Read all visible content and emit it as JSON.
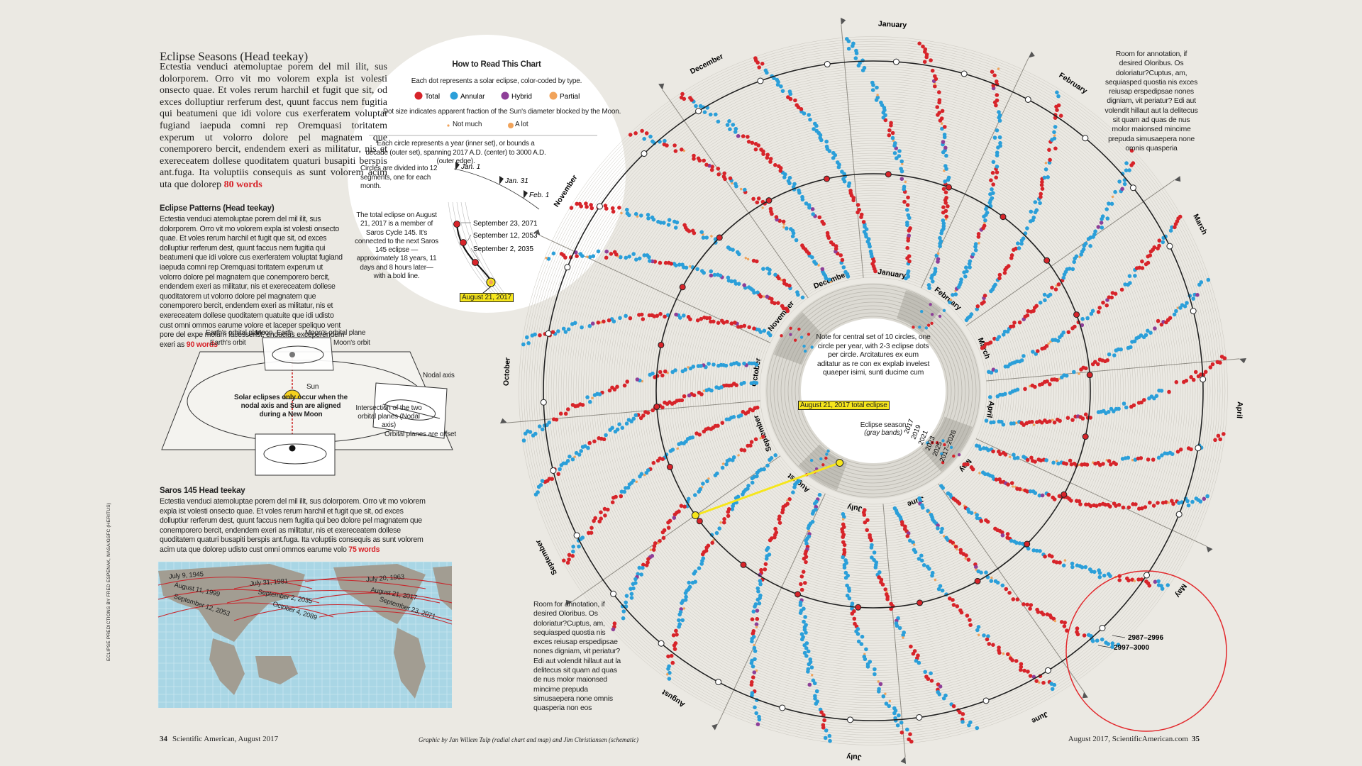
{
  "header": {
    "title": "Eclipse Seasons (Head teekay)",
    "body": "Ectestia venduci atemoluptae porem del mil ilit, sus dolorporem. Orro vit mo volorem expla ist volesti onsecto quae. Et voles rerum harchil et fugit que sit, od exces dolluptiur rerferum dest, quunt faccus nem fugitia qui beatumeni que idi volore cus exerferatem voluptat fugiand iaepuda comni rep Oremquasi toritatem experum ut volorro dolore pel magnatem que conemporero bercit, endendem exeri as militatur, nis et exereceatem dollese quoditatem quaturi busapiti berspis ant.fuga. Ita voluptiis consequis as sunt volorem acim uta que dolorep",
    "count": "80 words"
  },
  "patterns": {
    "title": "Eclipse Patterns (Head teekay)",
    "body": "Ectestia venduci atemoluptae porem del mil ilit, sus dolorporem. Orro vit mo volorem expla ist volesti onsecto quae. Et voles rerum harchil et fugit que sit, od exces dolluptiur rerferum dest, quunt faccus nem fugitia qui beatumeni que idi volore cus exerferatem voluptat fugiand iaepuda comni rep Oremquasi toritatem experum ut volorro dolore pel magnatem que conemporero bercit, endendem exeri as militatur, nis et exereceatem dollese quoditatorem ut volorro dolore pel magnatem que conemporero bercit, endendem exeri as militatur, nis et exereceatem dollese quoditatem quatuite que idi udisto cust omni ommos earume volore et laceper speliquo vent pore del expe molum facesserist, enducius exceperendem exeri as",
    "count": "90 words"
  },
  "schematic": {
    "labels": [
      "Earth's orbital plane",
      "Earth's orbit",
      "Moon",
      "Earth",
      "Moon's orbital plane",
      "Moon's orbit",
      "Nodal axis",
      "Sun",
      "Solar eclipses only occur when the nodal axis and Sun are aligned during a New Moon",
      "Intersection of the two orbital planes (Nodal axis)",
      "Orbital planes are offset"
    ]
  },
  "saros": {
    "title": "Saros 145 Head teekay",
    "body": "Ectestia venduci atemoluptae porem del mil ilit, sus dolorporem. Orro vit mo volorem expla ist volesti onsecto quae. Et voles rerum harchil et fugit que sit, od exces dolluptiur rerferum dest, quunt faccus nem fugitia qui beo dolore pel magnatem que conemporero bercit, endendem exeri as militatur, nis et exereceatem dollese quoditatem quaturi busapiti berspis ant.fuga. Ita voluptiis consequis as sunt volorem acim uta que dolorep udisto cust omni ommos earume volo",
    "count": "75 words"
  },
  "map": {
    "labels": [
      "July 9, 1945",
      "August 11, 1999",
      "September 12, 2053",
      "July 31, 1981",
      "September 2, 2035",
      "October 4, 2089",
      "July 20, 1963",
      "August 21, 2017",
      "September 23, 2071"
    ]
  },
  "how_to_read": {
    "title": "How to Read This Chart",
    "dot_text": "Each dot represents a solar eclipse, color-coded by type.",
    "legend": [
      {
        "name": "Total",
        "color": "#d7242a"
      },
      {
        "name": "Annular",
        "color": "#2b9fd9"
      },
      {
        "name": "Hybrid",
        "color": "#8e3f98"
      },
      {
        "name": "Partial",
        "color": "#f1a35a"
      }
    ],
    "size_text": "Dot size indicates apparent fraction of the Sun's diameter blocked by the Moon.",
    "size_small": "Not much",
    "size_large": "A lot",
    "circle_text": "Each circle represents a year (inner set), or bounds a decade (outer set), spanning 2017 A.D. (center) to 3000 A.D. (outer edge).",
    "segments_text": "Circles are divided into 12 segments, one for each month.",
    "ticks": [
      "Jan. 1",
      "Jan. 31",
      "Feb. 1"
    ],
    "saros_text": "The total eclipse on August 21, 2017 is a member of Saros Cycle 145. It's connected to the next Saros 145 eclipse — approximately 18 years, 11 days and 8 hours later—with a bold line.",
    "saros_dates": [
      "September 23, 2071",
      "September 12, 2053",
      "September 2, 2035",
      "August 21, 2017"
    ]
  },
  "chart": {
    "months": [
      "January",
      "February",
      "March",
      "April",
      "May",
      "June",
      "July",
      "August",
      "September",
      "October",
      "November",
      "December"
    ],
    "note": "Note for central set of 10 circles, one circle per year, with 2-3 eclipse dots per circle. Arcitatures ex eum aditatur as re con ex explab invelest quaeper isimi, sunti ducime cum",
    "highlight": "August 21, 2017 total eclipse",
    "season": "Eclipse season",
    "season_note": "(gray bands)",
    "years": [
      "2017",
      "2019",
      "2021",
      "2023",
      "2025",
      "2017–2026"
    ],
    "range_labels": [
      "2987–2996",
      "2997–3000"
    ]
  },
  "annotations": [
    "Room for annotation, if desired Oloribus. Os doloriatur?Cuptus, am, sequiasped quostia nis exces reiusap erspedipsae nones digniam, vit periatur? Edi aut volendit hillaut aut la delitecus sit quam ad quas de nus molor maionsed mincime prepuda simusaepera none omnis quasperia",
    "Room for annotation, if desired Oloribus. Os doloriatur?Cuptus, am, sequiasped quostia nis exces reiusap erspedipsae nones digniam, vit periatur? Edi aut volendit hillaut aut la delitecus sit quam ad quas de nus molor maionsed mincime prepuda simusaepera none omnis quasperia non eos"
  ],
  "footer": {
    "left_page": "34",
    "left_title": "Scientific American, August 2017",
    "credit": "Graphic by Jan Willem Tulp (radial chart and map) and Jim Christiansen (schematic)",
    "right_title": "August 2017, ScientificAmerican.com",
    "right_page": "35"
  },
  "side_credit": "ECLIPSE PREDICTIONS BY FRED ESPENAK, NASA/GSFC (HERITUS)"
}
